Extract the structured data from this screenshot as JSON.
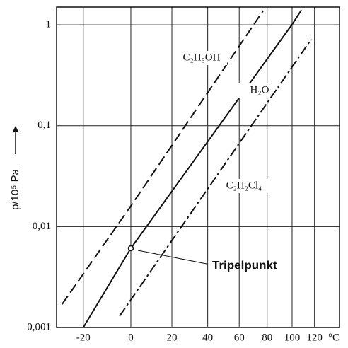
{
  "chart_data": {
    "type": "line",
    "xscale": "reciprocal-absolute",
    "yscale": "log",
    "grid": true,
    "ylabel": "p/10⁵ Pa",
    "xlabel": "°C",
    "xlim": [
      -30,
      145
    ],
    "xticks": [
      -20,
      0,
      20,
      40,
      60,
      80,
      100,
      120
    ],
    "ylim": [
      0.001,
      1.5
    ],
    "yticks": [
      {
        "value": 0.001,
        "label": "0,001"
      },
      {
        "value": 0.01,
        "label": "0,01"
      },
      {
        "value": 0.1,
        "label": "0,1"
      },
      1
    ],
    "series": [
      {
        "name": "C₂H₅OH",
        "color": "#111111",
        "dash": "dashed",
        "x": [
          -28,
          0,
          70,
          77
        ],
        "values": [
          0.0017,
          0.016,
          1,
          1.38
        ]
      },
      {
        "name": "H₂O",
        "color": "#111111",
        "dash": "solid",
        "x": [
          -20,
          0,
          100,
          108
        ],
        "values": [
          0.001,
          0.0061,
          1.01,
          1.4
        ]
      },
      {
        "name": "C₂H₂Cl₄",
        "color": "#111111",
        "dash": "dashdot",
        "x": [
          -5,
          117
        ],
        "values": [
          0.0013,
          0.72
        ]
      }
    ],
    "annotations": [
      {
        "text": "Tripelpunkt",
        "x": 0,
        "y": 0.0061
      }
    ]
  }
}
